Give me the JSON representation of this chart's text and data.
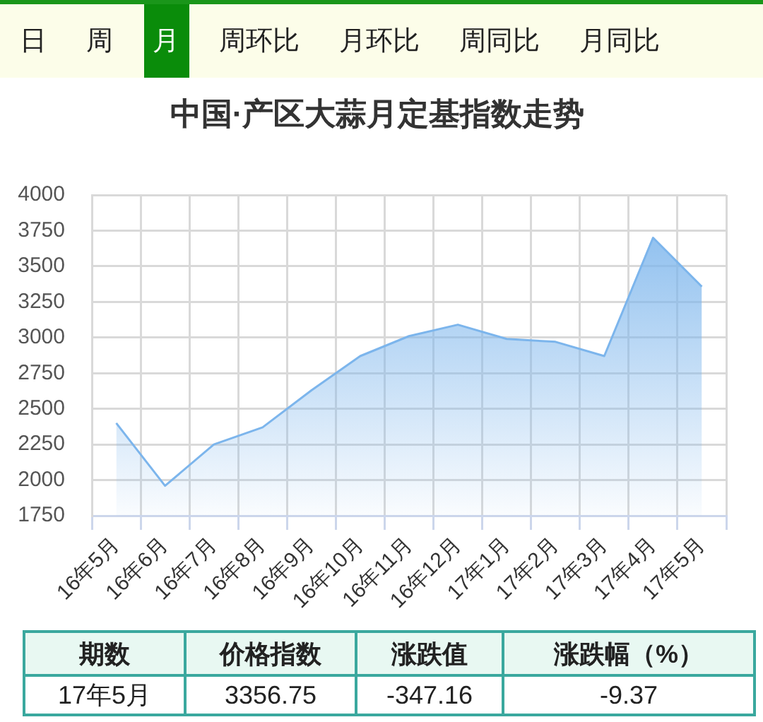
{
  "chart_data": [
    {
      "type": "other",
      "annotations": [
        "日",
        "周",
        "月",
        "周环比",
        "月环比",
        "周同比",
        "月同比"
      ]
    },
    {
      "type": "area",
      "title": "中国·产区大蒜月定基指数走势",
      "categories": [
        "16年5月",
        "16年6月",
        "16年7月",
        "16年8月",
        "16年9月",
        "16年10月",
        "16年11月",
        "16年12月",
        "17年1月",
        "17年2月",
        "17年3月",
        "17年4月",
        "17年5月"
      ],
      "values": [
        2400,
        1960,
        2250,
        2370,
        2630,
        2870,
        3010,
        3090,
        2990,
        2970,
        2870,
        3700,
        3356.75
      ],
      "color": "#7cb5ec",
      "ylim": [
        1750,
        4000
      ],
      "yticks": [
        1750,
        2000,
        2250,
        2500,
        2750,
        3000,
        3250,
        3500,
        3750,
        4000
      ],
      "grid": true
    },
    {
      "type": "other",
      "annotations": [
        "期数",
        "价格指数",
        "涨跌值",
        "涨跌幅（%）",
        "17年5月",
        "3356.75",
        "-347.16",
        "-9.37"
      ]
    }
  ]
}
